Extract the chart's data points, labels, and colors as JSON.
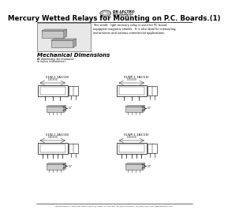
{
  "title": "Mercury Wetted Relays for Mounting on P.C. Boards.(1)",
  "company_name": "DB LECTRO",
  "company_sub1": "MERCURY WETTED",
  "company_sub2": "RELAY SPECIALIST",
  "description_lines": [
    "This small,  light mercury relay is used for PC board",
    "equipped magnetic shields.  It is also ideal for measuring",
    "instruments and various commercial applications."
  ],
  "mechanical_title": "Mechanical Dimensions",
  "mechanical_sub1": "All dimensions are measured",
  "mechanical_sub2": "in inches (millimeters).",
  "diagram_labels": [
    "51W-1 1A1(1S)",
    "51WP-1 1A1(1S)",
    "51W-1 2A1(1S)",
    "51WP-1 2A1(1S)"
  ],
  "footer": "DB LECTRO Inc.  2000 East Martin Luther | Prospect Ht. 847-537  tel:(800)-444-5614  fax:(630)-466-4710  www.dblectro.com",
  "bg_color": "#ffffff",
  "text_color": "#000000",
  "gray_light": "#e8e8e8",
  "gray_mid": "#c0c0c0",
  "gray_dark": "#888888"
}
